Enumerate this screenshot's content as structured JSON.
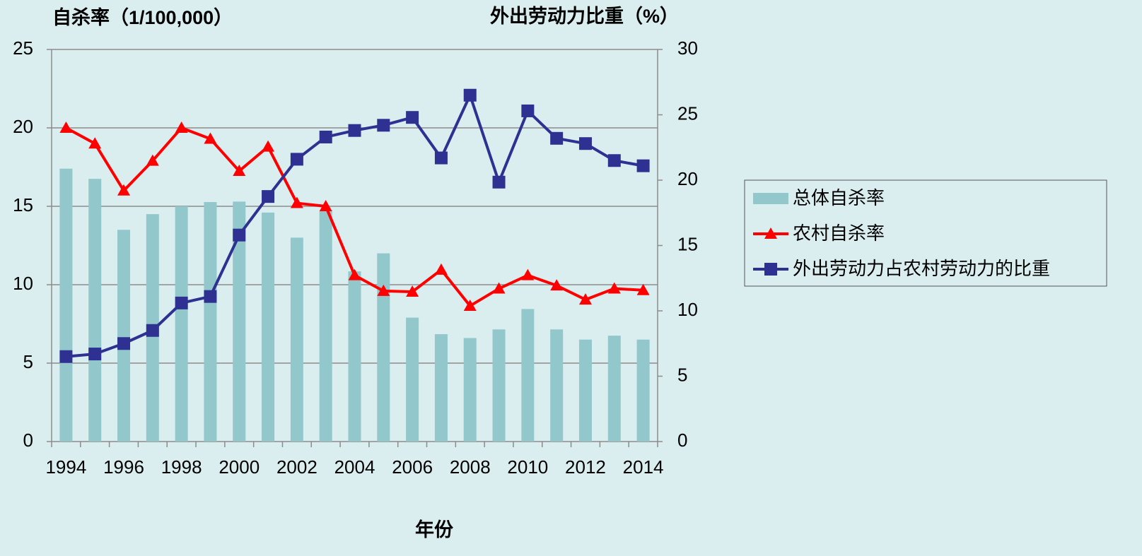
{
  "chart_data": {
    "type": "bar_line",
    "ylabel": "自杀率（1/100,000）",
    "y2label": "外出劳动力比重（%）",
    "xlabel": "年份",
    "categories": [
      "1994",
      null,
      "1996",
      null,
      "1998",
      null,
      "2000",
      null,
      "2002",
      null,
      "2004",
      null,
      "2006",
      null,
      "2008",
      null,
      "2010",
      null,
      "2012",
      null,
      "2014"
    ],
    "series": [
      {
        "name": "总体自杀率",
        "type": "bar",
        "color": "#92c7cc",
        "values": [
          17.4,
          16.75,
          13.5,
          14.5,
          15.0,
          15.27,
          15.3,
          14.6,
          13.0,
          14.7,
          10.85,
          12.0,
          7.9,
          6.85,
          6.6,
          7.15,
          8.45,
          7.15,
          6.5,
          6.75,
          6.5
        ]
      },
      {
        "name": "农村自杀率",
        "type": "line",
        "marker": "triangle",
        "color": "#ff0000",
        "values": [
          20.0,
          19.0,
          16.0,
          17.9,
          20.0,
          19.3,
          17.25,
          18.8,
          15.2,
          15.0,
          10.6,
          9.6,
          9.55,
          10.95,
          8.65,
          9.75,
          10.6,
          9.95,
          9.05,
          9.75,
          9.65
        ]
      },
      {
        "name": "外出劳动力占农村劳动力的比重",
        "type": "line",
        "marker": "square",
        "color": "#2e3192",
        "axis": "y2",
        "values": [
          6.5,
          6.7,
          7.5,
          8.5,
          10.6,
          11.1,
          15.8,
          18.75,
          21.6,
          23.3,
          23.8,
          24.2,
          24.8,
          21.7,
          26.5,
          19.85,
          25.3,
          23.2,
          22.8,
          21.5,
          21.1
        ]
      }
    ],
    "ylim": [
      0,
      25
    ],
    "yticks": [
      0,
      5,
      10,
      15,
      20,
      25
    ],
    "y2lim": [
      0,
      30
    ],
    "y2ticks": [
      0,
      5,
      10,
      15,
      20,
      25,
      30
    ],
    "grid": true,
    "legend": "right"
  }
}
